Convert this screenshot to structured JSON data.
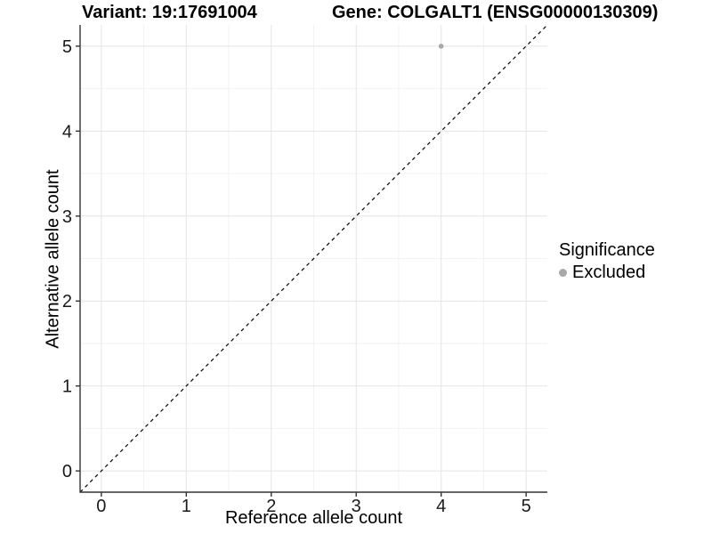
{
  "figure": {
    "background": "#ffffff"
  },
  "chart_data": {
    "type": "scatter",
    "title_left": "Variant: 19:17691004",
    "title_right": "Gene: COLGALT1 (ENSG00000130309)",
    "xlabel": "Reference allele count",
    "ylabel": "Alternative allele count",
    "xlim": [
      -0.25,
      5.25
    ],
    "ylim": [
      -0.25,
      5.25
    ],
    "x_ticks": [
      0,
      1,
      2,
      3,
      4,
      5
    ],
    "y_ticks": [
      0,
      1,
      2,
      3,
      4,
      5
    ],
    "x_minor_ticks": [
      0.5,
      1.5,
      2.5,
      3.5,
      4.5
    ],
    "y_minor_ticks": [
      0.5,
      1.5,
      2.5,
      3.5,
      4.5
    ],
    "grid": "on",
    "series": [
      {
        "name": "Excluded",
        "color": "#a8a8a8",
        "points": [
          {
            "x": 4,
            "y": 5
          }
        ]
      }
    ],
    "identity_line": {
      "style": "dashed",
      "color": "#000000",
      "from": [
        -0.25,
        -0.25
      ],
      "to": [
        5.25,
        5.25
      ]
    },
    "legend": {
      "title": "Significance",
      "position": "right",
      "entries": [
        {
          "label": "Excluded",
          "color": "#a8a8a8"
        }
      ]
    },
    "colors": {
      "grid_major": "#e4e4e4",
      "grid_minor": "#f2f2f2",
      "axis_line": "#333333",
      "tick_text": "#1a1a1a"
    }
  }
}
